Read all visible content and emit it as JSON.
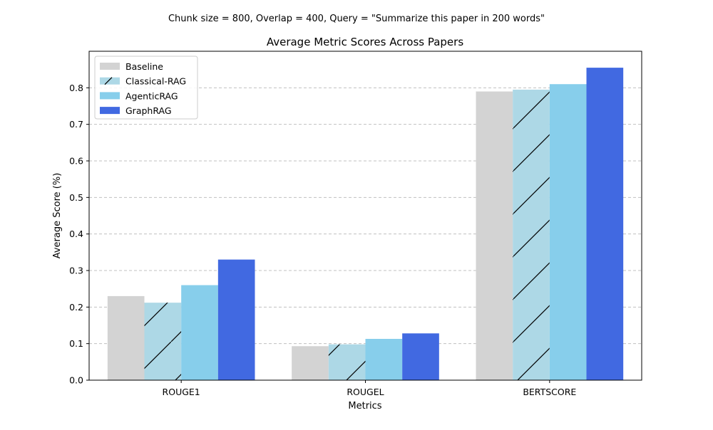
{
  "chart_data": {
    "type": "bar",
    "suptitle": "Chunk size = 800, Overlap = 400, Query = \"Summarize this paper in 200 words\"",
    "title": "Average Metric Scores Across Papers",
    "xlabel": "Metrics",
    "ylabel": "Average Score (%)",
    "categories": [
      "ROUGE1",
      "ROUGEL",
      "BERTSCORE"
    ],
    "series": [
      {
        "name": "Baseline",
        "values": [
          0.23,
          0.093,
          0.79
        ],
        "color": "#d3d3d3",
        "hatch": false
      },
      {
        "name": "Classical-RAG",
        "values": [
          0.212,
          0.098,
          0.795
        ],
        "color": "#add8e6",
        "hatch": true
      },
      {
        "name": "AgenticRAG",
        "values": [
          0.26,
          0.113,
          0.81
        ],
        "color": "#87ceeb",
        "hatch": false
      },
      {
        "name": "GraphRAG",
        "values": [
          0.33,
          0.128,
          0.855
        ],
        "color": "#4169e1",
        "hatch": false
      }
    ],
    "ylim": [
      0,
      0.9
    ],
    "yticks": [
      "0.0",
      "0.1",
      "0.2",
      "0.3",
      "0.4",
      "0.5",
      "0.6",
      "0.7",
      "0.8"
    ],
    "grid": "y-dashed",
    "legend_position": "top-left"
  }
}
